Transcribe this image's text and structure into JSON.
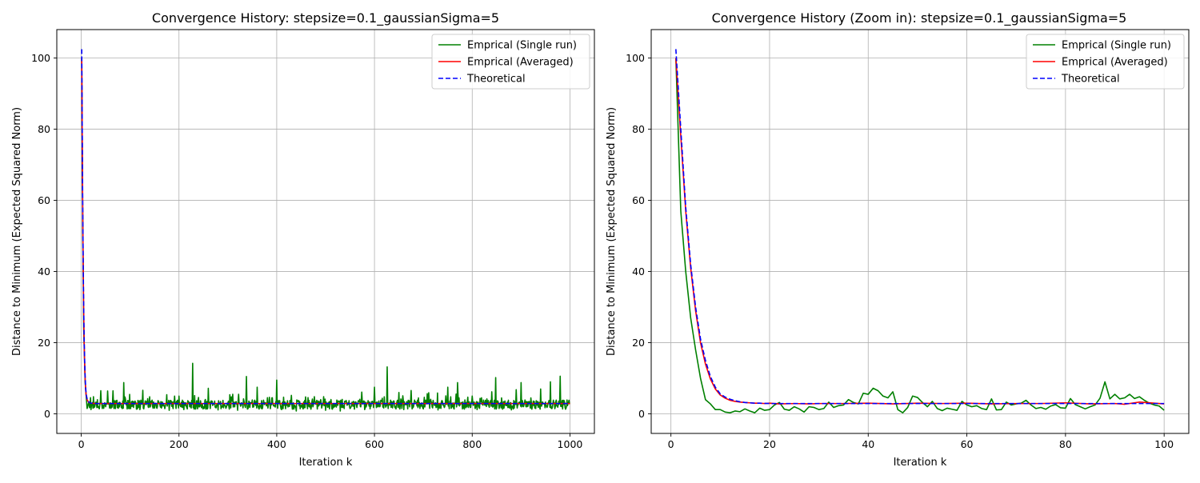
{
  "chart_data": [
    {
      "type": "line",
      "title": "Convergence History: stepsize=0.1_gaussianSigma=5",
      "xlabel": "Iteration k",
      "ylabel": "Distance to Minimum (Expected Squared Norm)",
      "xlim": [
        -50,
        1050
      ],
      "ylim": [
        -5.5,
        108
      ],
      "xticks": [
        0,
        200,
        400,
        600,
        800,
        1000
      ],
      "xtick_labels": [
        "0",
        "200",
        "400",
        "600",
        "800",
        "1000"
      ],
      "yticks": [
        0,
        20,
        40,
        60,
        80,
        100
      ],
      "ytick_labels": [
        "0",
        "20",
        "40",
        "60",
        "80",
        "100"
      ],
      "grid": true,
      "legend_position": "top-right",
      "noise_amplitude": 1.0,
      "series": [
        {
          "name": "Emprical (Single run)",
          "color": "#008000",
          "style": "solid",
          "x": [
            1,
            3,
            5,
            8,
            12,
            20,
            30,
            40,
            50,
            60,
            70,
            80,
            87,
            90,
            100,
            110,
            120,
            130,
            140,
            150,
            160,
            170,
            180,
            190,
            200,
            210,
            220,
            228,
            235,
            240,
            250,
            260,
            270,
            280,
            290,
            300,
            310,
            320,
            330,
            338,
            345,
            350,
            360,
            370,
            380,
            390,
            400,
            410,
            420,
            430,
            440,
            450,
            460,
            470,
            480,
            490,
            500,
            510,
            520,
            530,
            540,
            550,
            560,
            570,
            580,
            590,
            600,
            610,
            620,
            626,
            632,
            640,
            650,
            660,
            670,
            680,
            690,
            700,
            710,
            720,
            730,
            740,
            750,
            760,
            770,
            780,
            790,
            800,
            810,
            820,
            830,
            840,
            848,
            855,
            860,
            870,
            880,
            890,
            900,
            910,
            920,
            930,
            940,
            950,
            960,
            970,
            980,
            990,
            1000
          ],
          "y": [
            100,
            55,
            24,
            9,
            1.5,
            1.2,
            2.8,
            6.5,
            2.0,
            3.1,
            1.5,
            2.9,
            8.8,
            4.5,
            2.0,
            3.6,
            1.2,
            2.7,
            4.8,
            1.6,
            3.0,
            2.2,
            1.0,
            2.9,
            5.0,
            1.2,
            3.3,
            14.2,
            2.1,
            4.6,
            1.5,
            7.2,
            2.6,
            1.1,
            3.8,
            2.5,
            5.5,
            1.0,
            2.8,
            10.5,
            1.8,
            3.9,
            7.5,
            1.4,
            2.6,
            4.5,
            9.5,
            1.2,
            3.0,
            5.2,
            0.8,
            2.4,
            3.5,
            1.3,
            2.7,
            4.0,
            1.0,
            2.9,
            2.2,
            0.8,
            3.5,
            1.5,
            2.6,
            4.1,
            1.2,
            3.3,
            7.5,
            2.0,
            4.8,
            13.2,
            2.5,
            3.6,
            6.0,
            1.2,
            3.4,
            2.1,
            4.5,
            1.4,
            2.9,
            3.8,
            1.1,
            2.5,
            7.5,
            2.0,
            8.8,
            1.4,
            3.6,
            5.0,
            1.2,
            2.7,
            4.2,
            6.2,
            10.2,
            1.5,
            4.5,
            2.6,
            1.1,
            6.8,
            8.8,
            2.0,
            4.5,
            1.5,
            7.0,
            3.3,
            9.0,
            2.0,
            10.6,
            1.8,
            2.8
          ]
        },
        {
          "name": "Emprical (Averaged)",
          "color": "#ff0000",
          "style": "solid",
          "x": [
            1,
            2,
            3,
            4,
            5,
            6,
            7,
            8,
            9,
            10,
            12,
            15,
            20,
            30,
            1000
          ],
          "y": [
            100,
            78,
            57,
            41,
            29,
            20,
            14,
            9.8,
            7.0,
            5.3,
            4.0,
            3.3,
            3.0,
            2.9,
            2.9
          ]
        },
        {
          "name": "Theoretical",
          "color": "#0000ff",
          "style": "dashed",
          "x": [
            1,
            2,
            3,
            4,
            5,
            6,
            7,
            8,
            9,
            10,
            12,
            15,
            20,
            30,
            1000
          ],
          "y": [
            102.5,
            80,
            58,
            42,
            30,
            21,
            15,
            10.5,
            7.5,
            5.6,
            4.2,
            3.4,
            3.0,
            2.9,
            2.9
          ]
        }
      ]
    },
    {
      "type": "line",
      "title": "Convergence History (Zoom in): stepsize=0.1_gaussianSigma=5",
      "xlabel": "Iteration k",
      "ylabel": "Distance to Minimum (Expected Squared Norm)",
      "xlim": [
        -4,
        105
      ],
      "ylim": [
        -5.5,
        108
      ],
      "xticks": [
        0,
        20,
        40,
        60,
        80,
        100
      ],
      "xtick_labels": [
        "0",
        "20",
        "40",
        "60",
        "80",
        "100"
      ],
      "yticks": [
        0,
        20,
        40,
        60,
        80,
        100
      ],
      "ytick_labels": [
        "0",
        "20",
        "40",
        "60",
        "80",
        "100"
      ],
      "grid": true,
      "legend_position": "top-right",
      "noise_amplitude": 0,
      "series": [
        {
          "name": "Emprical (Single run)",
          "color": "#008000",
          "style": "solid",
          "x": [
            1,
            2,
            3,
            4,
            5,
            6,
            7,
            8,
            9,
            10,
            11,
            12,
            13,
            14,
            15,
            16,
            17,
            18,
            19,
            20,
            21,
            22,
            23,
            24,
            25,
            26,
            27,
            28,
            29,
            30,
            31,
            32,
            33,
            34,
            35,
            36,
            37,
            38,
            39,
            40,
            41,
            42,
            43,
            44,
            45,
            46,
            47,
            48,
            49,
            50,
            51,
            52,
            53,
            54,
            55,
            56,
            57,
            58,
            59,
            60,
            61,
            62,
            63,
            64,
            65,
            66,
            67,
            68,
            69,
            70,
            71,
            72,
            73,
            74,
            75,
            76,
            77,
            78,
            79,
            80,
            81,
            82,
            83,
            84,
            85,
            86,
            87,
            88,
            89,
            90,
            91,
            92,
            93,
            94,
            95,
            96,
            97,
            98,
            99,
            100
          ],
          "y": [
            100,
            57,
            40,
            27,
            18,
            10,
            4.0,
            2.8,
            1.2,
            1.2,
            0.5,
            0.3,
            0.8,
            0.6,
            1.4,
            0.8,
            0.3,
            1.6,
            1.0,
            1.2,
            2.5,
            3.2,
            1.3,
            1.0,
            2.0,
            1.4,
            0.5,
            2.0,
            1.8,
            1.2,
            1.5,
            3.3,
            1.8,
            2.3,
            2.5,
            4.0,
            3.2,
            2.8,
            5.8,
            5.5,
            7.2,
            6.5,
            5.0,
            4.5,
            6.2,
            1.2,
            0.3,
            1.8,
            5.0,
            4.6,
            3.2,
            2.0,
            3.5,
            1.5,
            0.9,
            1.6,
            1.3,
            1.0,
            3.5,
            2.5,
            2.0,
            2.3,
            1.5,
            1.2,
            4.2,
            1.1,
            1.2,
            3.3,
            2.5,
            2.8,
            3.0,
            3.8,
            2.5,
            1.5,
            1.8,
            1.3,
            2.2,
            2.6,
            1.7,
            1.6,
            4.3,
            2.6,
            2.0,
            1.4,
            2.0,
            2.5,
            4.4,
            9.0,
            4.2,
            5.5,
            4.2,
            4.5,
            5.5,
            4.3,
            4.8,
            3.8,
            3.0,
            2.5,
            2.2,
            1.0
          ]
        },
        {
          "name": "Emprical (Averaged)",
          "color": "#ff0000",
          "style": "solid",
          "x": [
            1,
            2,
            3,
            4,
            5,
            6,
            7,
            8,
            9,
            10,
            11,
            12,
            13,
            14,
            15,
            16,
            17,
            18,
            19,
            20,
            22,
            25,
            28,
            30,
            35,
            40,
            45,
            50,
            55,
            60,
            65,
            70,
            75,
            80,
            85,
            90,
            92,
            95,
            100
          ],
          "y": [
            100,
            78,
            57,
            41,
            29,
            20,
            14,
            9.8,
            7.0,
            5.3,
            4.4,
            3.8,
            3.5,
            3.3,
            3.2,
            3.1,
            3.0,
            3.0,
            2.9,
            3.0,
            2.8,
            2.9,
            2.8,
            2.9,
            2.9,
            3.0,
            2.8,
            3.0,
            2.9,
            3.0,
            2.8,
            2.9,
            2.9,
            3.1,
            2.8,
            2.9,
            2.7,
            3.3,
            2.8
          ]
        },
        {
          "name": "Theoretical",
          "color": "#0000ff",
          "style": "dashed",
          "x": [
            1,
            2,
            3,
            4,
            5,
            6,
            7,
            8,
            9,
            10,
            11,
            12,
            13,
            14,
            15,
            16,
            17,
            18,
            19,
            20,
            25,
            30,
            40,
            50,
            60,
            70,
            80,
            90,
            100
          ],
          "y": [
            102.5,
            80,
            58,
            42,
            30,
            21,
            15,
            10.5,
            7.5,
            5.6,
            4.7,
            4.1,
            3.7,
            3.4,
            3.2,
            3.1,
            3.0,
            3.0,
            2.95,
            2.9,
            2.9,
            2.9,
            2.9,
            2.9,
            2.9,
            2.9,
            2.9,
            2.9,
            2.9
          ]
        }
      ]
    }
  ]
}
